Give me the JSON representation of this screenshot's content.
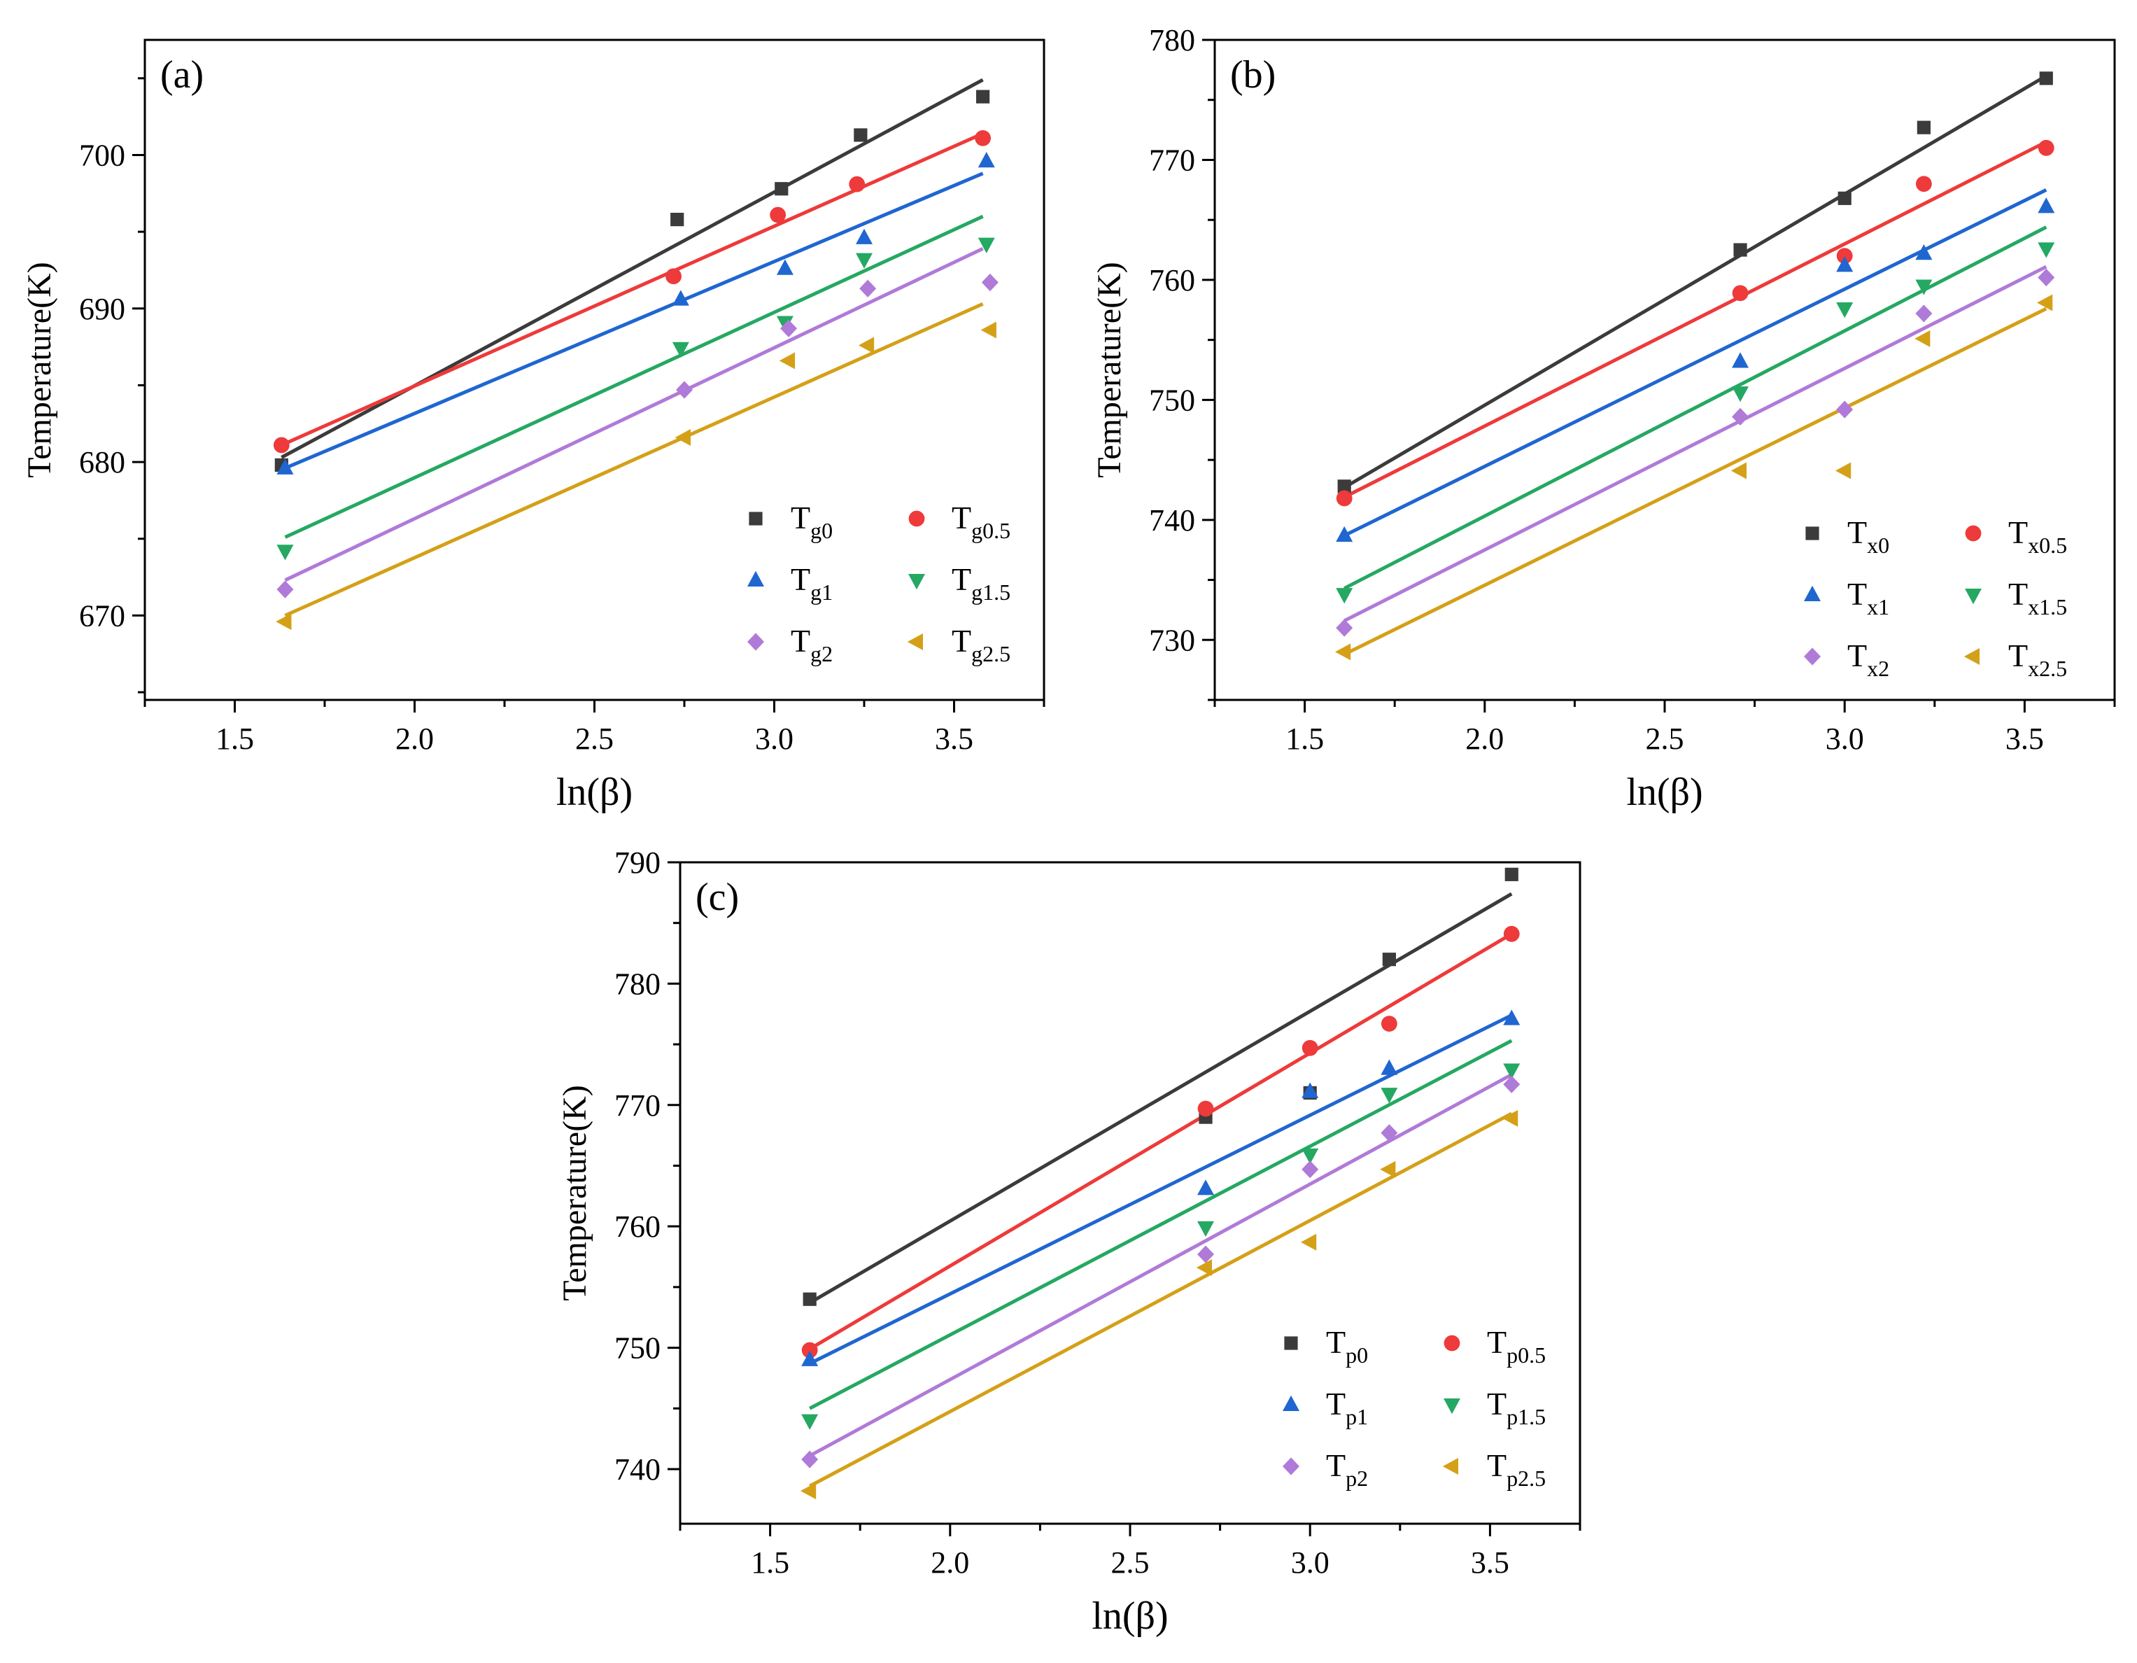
{
  "colors": {
    "T0": "#3b3b3b",
    "T0_5": "#ee3a3a",
    "T1": "#1f66d1",
    "T1_5": "#25a862",
    "T2": "#b07ad8",
    "T2_5": "#d4a017"
  },
  "chart_data": [
    {
      "type": "scatter",
      "panel_label": "(a)",
      "xlabel": "ln(β)",
      "ylabel": "Temperature(K)",
      "xlim": [
        1.25,
        3.75
      ],
      "ylim": [
        664.5,
        707.5
      ],
      "xticks": [
        1.5,
        2.0,
        2.5,
        3.0,
        3.5
      ],
      "xtick_labels": [
        "1.5",
        "2.0",
        "2.5",
        "3.0",
        "3.5"
      ],
      "yticks": [
        670,
        680,
        690,
        700
      ],
      "ytick_labels": [
        "670",
        "680",
        "690",
        "700"
      ],
      "legend_letter": "g",
      "series": [
        {
          "name": "Tg0",
          "main": "T",
          "sub": "g0",
          "marker": "square",
          "color_key": "T0",
          "x": [
            1.63,
            2.73,
            3.02,
            3.24,
            3.58
          ],
          "y": [
            679.8,
            695.8,
            697.8,
            701.3,
            703.8
          ],
          "fit": [
            [
              1.63,
              680.3
            ],
            [
              3.58,
              704.9
            ]
          ]
        },
        {
          "name": "Tg0.5",
          "main": "T",
          "sub": "g0.5",
          "marker": "circle",
          "color_key": "T0_5",
          "x": [
            1.63,
            2.72,
            3.01,
            3.23,
            3.58
          ],
          "y": [
            681.1,
            692.1,
            696.1,
            698.1,
            701.1
          ],
          "fit": [
            [
              1.63,
              681.1
            ],
            [
              3.58,
              701.4
            ]
          ]
        },
        {
          "name": "Tg1",
          "main": "T",
          "sub": "g1",
          "marker": "triangle-up",
          "color_key": "T1",
          "x": [
            1.64,
            2.74,
            3.03,
            3.25,
            3.59
          ],
          "y": [
            679.6,
            690.6,
            692.6,
            694.6,
            699.6
          ],
          "fit": [
            [
              1.64,
              679.6
            ],
            [
              3.58,
              698.8
            ]
          ]
        },
        {
          "name": "Tg1.5",
          "main": "T",
          "sub": "g1.5",
          "marker": "triangle-down",
          "color_key": "T1_5",
          "x": [
            1.64,
            2.74,
            3.03,
            3.25,
            3.59
          ],
          "y": [
            674.2,
            687.4,
            689.1,
            693.2,
            694.2
          ],
          "fit": [
            [
              1.64,
              675.1
            ],
            [
              3.58,
              696.0
            ]
          ]
        },
        {
          "name": "Tg2",
          "main": "T",
          "sub": "g2",
          "marker": "diamond",
          "color_key": "T2",
          "x": [
            1.64,
            2.75,
            3.04,
            3.26,
            3.6
          ],
          "y": [
            671.7,
            684.7,
            688.7,
            691.3,
            691.7
          ],
          "fit": [
            [
              1.64,
              672.3
            ],
            [
              3.58,
              693.9
            ]
          ]
        },
        {
          "name": "Tg2.5",
          "main": "T",
          "sub": "g2.5",
          "marker": "triangle-left",
          "color_key": "T2_5",
          "x": [
            1.64,
            2.75,
            3.04,
            3.26,
            3.6
          ],
          "y": [
            669.6,
            681.6,
            686.6,
            687.6,
            688.6
          ],
          "fit": [
            [
              1.64,
              670.0
            ],
            [
              3.58,
              690.3
            ]
          ]
        }
      ]
    },
    {
      "type": "scatter",
      "panel_label": "(b)",
      "xlabel": "ln(β)",
      "ylabel": "Temperature(K)",
      "xlim": [
        1.25,
        3.75
      ],
      "ylim": [
        725,
        780
      ],
      "xticks": [
        1.5,
        2.0,
        2.5,
        3.0,
        3.5
      ],
      "xtick_labels": [
        "1.5",
        "2.0",
        "2.5",
        "3.0",
        "3.5"
      ],
      "yticks": [
        730,
        740,
        750,
        760,
        770,
        780
      ],
      "ytick_labels": [
        "730",
        "740",
        "750",
        "760",
        "770",
        "780"
      ],
      "legend_letter": "x",
      "series": [
        {
          "name": "Tx0",
          "main": "T",
          "sub": "x0",
          "marker": "square",
          "color_key": "T0",
          "x": [
            1.61,
            2.71,
            3.0,
            3.22,
            3.56
          ],
          "y": [
            742.8,
            762.5,
            766.8,
            772.7,
            776.8
          ],
          "fit": [
            [
              1.61,
              742.7
            ],
            [
              3.56,
              777.0
            ]
          ]
        },
        {
          "name": "Tx0.5",
          "main": "T",
          "sub": "x0.5",
          "marker": "circle",
          "color_key": "T0_5",
          "x": [
            1.61,
            2.71,
            3.0,
            3.22,
            3.56
          ],
          "y": [
            741.8,
            758.9,
            762.0,
            768.0,
            771.0
          ],
          "fit": [
            [
              1.61,
              741.9
            ],
            [
              3.56,
              771.5
            ]
          ]
        },
        {
          "name": "Tx1",
          "main": "T",
          "sub": "x1",
          "marker": "triangle-up",
          "color_key": "T1",
          "x": [
            1.61,
            2.71,
            3.0,
            3.22,
            3.56
          ],
          "y": [
            738.7,
            753.2,
            761.2,
            762.2,
            766.1
          ],
          "fit": [
            [
              1.61,
              738.7
            ],
            [
              3.56,
              767.5
            ]
          ]
        },
        {
          "name": "Tx1.5",
          "main": "T",
          "sub": "x1.5",
          "marker": "triangle-down",
          "color_key": "T1_5",
          "x": [
            1.61,
            2.71,
            3.0,
            3.22,
            3.56
          ],
          "y": [
            733.8,
            750.6,
            757.6,
            759.5,
            762.6
          ],
          "fit": [
            [
              1.61,
              734.3
            ],
            [
              3.56,
              764.4
            ]
          ]
        },
        {
          "name": "Tx2",
          "main": "T",
          "sub": "x2",
          "marker": "diamond",
          "color_key": "T2",
          "x": [
            1.61,
            2.71,
            3.0,
            3.22,
            3.56
          ],
          "y": [
            731.0,
            748.6,
            749.2,
            757.2,
            760.2
          ],
          "fit": [
            [
              1.61,
              731.6
            ],
            [
              3.56,
              761.1
            ]
          ]
        },
        {
          "name": "Tx2.5",
          "main": "T",
          "sub": "x2.5",
          "marker": "triangle-left",
          "color_key": "T2_5",
          "x": [
            1.61,
            2.71,
            3.0,
            3.22,
            3.56
          ],
          "y": [
            729.0,
            744.1,
            744.1,
            755.1,
            758.1
          ],
          "fit": [
            [
              1.61,
              728.8
            ],
            [
              3.56,
              757.6
            ]
          ]
        }
      ]
    },
    {
      "type": "scatter",
      "panel_label": "(c)",
      "xlabel": "ln(β)",
      "ylabel": "Temperature(K)",
      "xlim": [
        1.25,
        3.75
      ],
      "ylim": [
        735.5,
        790
      ],
      "xticks": [
        1.5,
        2.0,
        2.5,
        3.0,
        3.5
      ],
      "xtick_labels": [
        "1.5",
        "2.0",
        "2.5",
        "3.0",
        "3.5"
      ],
      "yticks": [
        740,
        750,
        760,
        770,
        780,
        790
      ],
      "ytick_labels": [
        "740",
        "750",
        "760",
        "770",
        "780",
        "790"
      ],
      "legend_letter": "p",
      "series": [
        {
          "name": "Tp0",
          "main": "T",
          "sub": "p0",
          "marker": "square",
          "color_key": "T0",
          "x": [
            1.61,
            2.71,
            3.0,
            3.22,
            3.56
          ],
          "y": [
            754.0,
            769.0,
            771.0,
            782.0,
            789.0
          ],
          "fit": [
            [
              1.61,
              753.7
            ],
            [
              3.56,
              787.4
            ]
          ]
        },
        {
          "name": "Tp0.5",
          "main": "T",
          "sub": "p0.5",
          "marker": "circle",
          "color_key": "T0_5",
          "x": [
            1.61,
            2.71,
            3.0,
            3.22,
            3.56
          ],
          "y": [
            749.8,
            769.7,
            774.7,
            776.7,
            784.1
          ],
          "fit": [
            [
              1.61,
              749.9
            ],
            [
              3.56,
              784.1
            ]
          ]
        },
        {
          "name": "Tp1",
          "main": "T",
          "sub": "p1",
          "marker": "triangle-up",
          "color_key": "T1",
          "x": [
            1.61,
            2.71,
            3.0,
            3.22,
            3.56
          ],
          "y": [
            749.0,
            763.1,
            771.1,
            773.0,
            777.1
          ],
          "fit": [
            [
              1.61,
              748.7
            ],
            [
              3.56,
              777.4
            ]
          ]
        },
        {
          "name": "Tp1.5",
          "main": "T",
          "sub": "p1.5",
          "marker": "triangle-down",
          "color_key": "T1_5",
          "x": [
            1.61,
            2.71,
            3.0,
            3.22,
            3.56
          ],
          "y": [
            744.0,
            759.9,
            765.9,
            770.9,
            772.9
          ],
          "fit": [
            [
              1.61,
              745.0
            ],
            [
              3.56,
              775.3
            ]
          ]
        },
        {
          "name": "Tp2",
          "main": "T",
          "sub": "p2",
          "marker": "diamond",
          "color_key": "T2",
          "x": [
            1.61,
            2.71,
            3.0,
            3.22,
            3.56
          ],
          "y": [
            740.8,
            757.7,
            764.7,
            767.7,
            771.7
          ],
          "fit": [
            [
              1.61,
              741.1
            ],
            [
              3.56,
              772.5
            ]
          ]
        },
        {
          "name": "Tp2.5",
          "main": "T",
          "sub": "p2.5",
          "marker": "triangle-left",
          "color_key": "T2_5",
          "x": [
            1.61,
            2.71,
            3.0,
            3.22,
            3.56
          ],
          "y": [
            738.2,
            756.6,
            758.7,
            764.7,
            768.9
          ],
          "fit": [
            [
              1.61,
              738.6
            ],
            [
              3.56,
              769.3
            ]
          ]
        }
      ]
    }
  ]
}
